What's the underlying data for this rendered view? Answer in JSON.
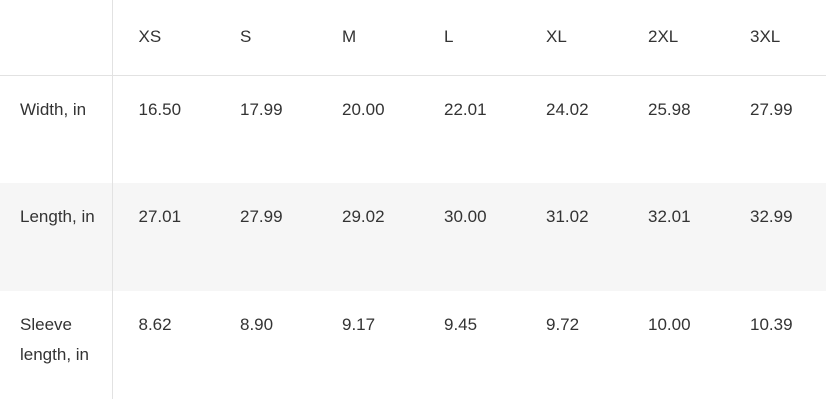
{
  "sizes": [
    "XS",
    "S",
    "M",
    "L",
    "XL",
    "2XL",
    "3XL"
  ],
  "rows": [
    {
      "label": "Width, in",
      "values": [
        "16.50",
        "17.99",
        "20.00",
        "22.01",
        "24.02",
        "25.98",
        "27.99"
      ]
    },
    {
      "label": "Length, in",
      "values": [
        "27.01",
        "27.99",
        "29.02",
        "30.00",
        "31.02",
        "32.01",
        "32.99"
      ]
    },
    {
      "label": "Sleeve length, in",
      "values": [
        "8.62",
        "8.90",
        "9.17",
        "9.45",
        "9.72",
        "10.00",
        "10.39"
      ]
    }
  ]
}
